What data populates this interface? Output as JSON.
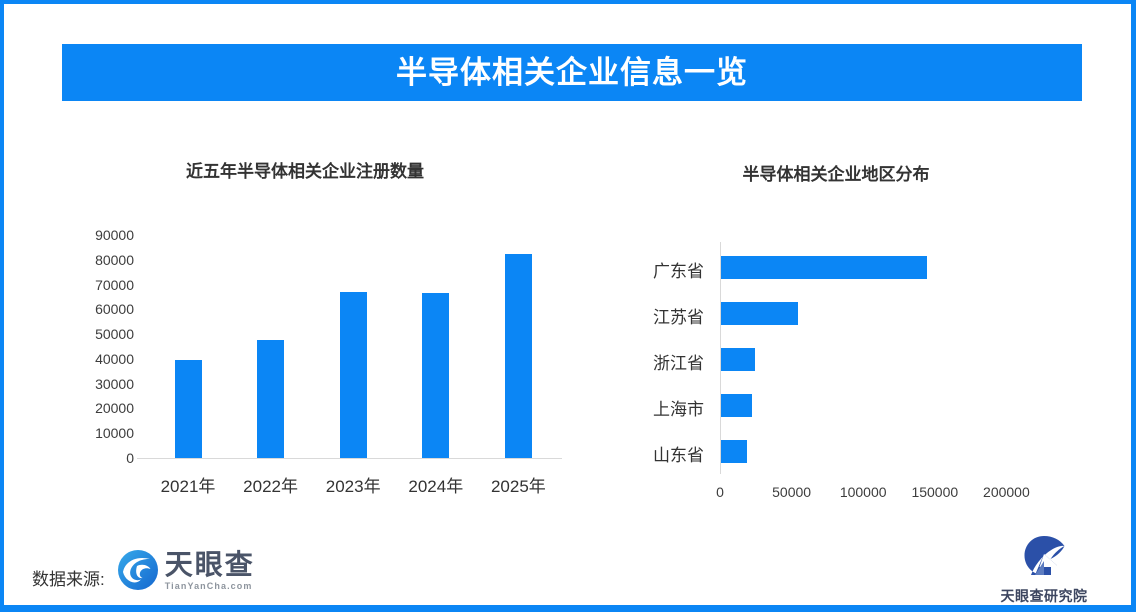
{
  "banner": {
    "title": "半导体相关企业信息一览"
  },
  "chart_data": [
    {
      "type": "bar",
      "title": "近五年半导体相关企业注册数量",
      "categories": [
        "2021年",
        "2022年",
        "2023年",
        "2024年",
        "2025年"
      ],
      "values": [
        39500,
        47500,
        67000,
        66500,
        82500
      ],
      "ylim": [
        0,
        90000
      ],
      "yticks": [
        0,
        10000,
        20000,
        30000,
        40000,
        50000,
        60000,
        70000,
        80000,
        90000
      ],
      "bar_color": "#0b86f5",
      "grid": false,
      "legend": null
    },
    {
      "type": "bar",
      "orientation": "horizontal",
      "title": "半导体相关企业地区分布",
      "categories": [
        "广东省",
        "江苏省",
        "浙江省",
        "上海市",
        "山东省"
      ],
      "values": [
        144000,
        53500,
        24000,
        21500,
        18500
      ],
      "xlim": [
        0,
        240000
      ],
      "xticks": [
        0,
        50000,
        100000,
        150000,
        200000
      ],
      "bar_color": "#0b86f5",
      "grid": false,
      "legend": null
    }
  ],
  "footer": {
    "source_label": "数据来源:",
    "tyc_logo_name": "天眼查",
    "tyc_logo_sub": "TianYanCha.com",
    "research_name": "天眼查研究院"
  },
  "colors": {
    "brand_blue": "#0b86f5",
    "title_text": "#333333",
    "axis_line": "#d9d9d9",
    "axis_text": "#3d3d3d"
  }
}
